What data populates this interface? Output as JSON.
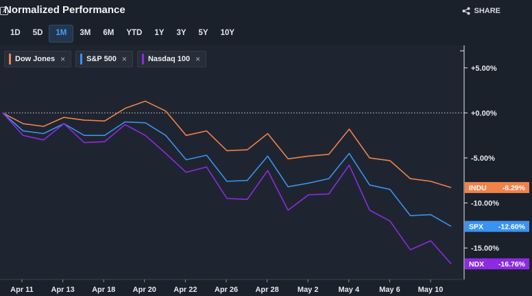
{
  "header": {
    "title": "Normalized Performance",
    "share_label": "SHARE"
  },
  "ranges": [
    {
      "label": "1D",
      "active": false
    },
    {
      "label": "5D",
      "active": false
    },
    {
      "label": "1M",
      "active": true
    },
    {
      "label": "3M",
      "active": false
    },
    {
      "label": "6M",
      "active": false
    },
    {
      "label": "YTD",
      "active": false
    },
    {
      "label": "1Y",
      "active": false
    },
    {
      "label": "3Y",
      "active": false
    },
    {
      "label": "5Y",
      "active": false
    },
    {
      "label": "10Y",
      "active": false
    }
  ],
  "legend": [
    {
      "label": "Dow Jones",
      "color": "#f0824a",
      "close": "×"
    },
    {
      "label": "S&P 500",
      "color": "#3a93f0",
      "close": "×"
    },
    {
      "label": "Nasdaq 100",
      "color": "#8c2be2",
      "close": "×"
    }
  ],
  "chart_data": {
    "type": "line",
    "title": "",
    "xlabel": "",
    "ylabel": "",
    "x_tick_labels": [
      "Apr 11",
      "Apr 13",
      "Apr 18",
      "Apr 20",
      "Apr 22",
      "Apr 26",
      "Apr 28",
      "May 2",
      "May 4",
      "May 6",
      "May 10"
    ],
    "y_tick_labels": [
      "+5.00%",
      "+0.00%",
      "-5.00%",
      "-10.00%",
      "-15.00%"
    ],
    "y_ticks": [
      5,
      0,
      -5,
      -10,
      -15
    ],
    "ylim": [
      -18.5,
      7.5
    ],
    "zero_line": true,
    "series": [
      {
        "name": "Dow Jones",
        "ticker": "INDU",
        "end_label": "-8.29%",
        "color": "#f0824a",
        "values": [
          0.0,
          -1.2,
          -1.5,
          -0.5,
          -0.8,
          -0.9,
          0.5,
          1.3,
          0.2,
          -2.5,
          -2.0,
          -4.2,
          -4.1,
          -2.3,
          -5.1,
          -4.8,
          -4.6,
          -1.8,
          -5.0,
          -5.3,
          -7.3,
          -7.6,
          -8.29
        ]
      },
      {
        "name": "S&P 500",
        "ticker": "SPX",
        "end_label": "-12.60%",
        "color": "#3a93f0",
        "values": [
          0.0,
          -2.0,
          -2.3,
          -1.2,
          -2.5,
          -2.5,
          -1.0,
          -1.1,
          -2.5,
          -5.2,
          -4.7,
          -7.6,
          -7.5,
          -4.8,
          -8.2,
          -7.8,
          -7.3,
          -4.5,
          -8.0,
          -8.5,
          -11.4,
          -11.3,
          -12.6
        ]
      },
      {
        "name": "Nasdaq 100",
        "ticker": "NDX",
        "end_label": "-16.76%",
        "color": "#8c2be2",
        "values": [
          0.0,
          -2.5,
          -3.0,
          -1.2,
          -3.3,
          -3.2,
          -1.3,
          -2.5,
          -4.5,
          -6.6,
          -6.0,
          -9.5,
          -9.6,
          -6.4,
          -10.8,
          -9.1,
          -9.0,
          -5.8,
          -10.8,
          -12.0,
          -15.2,
          -14.2,
          -16.76
        ]
      }
    ]
  }
}
